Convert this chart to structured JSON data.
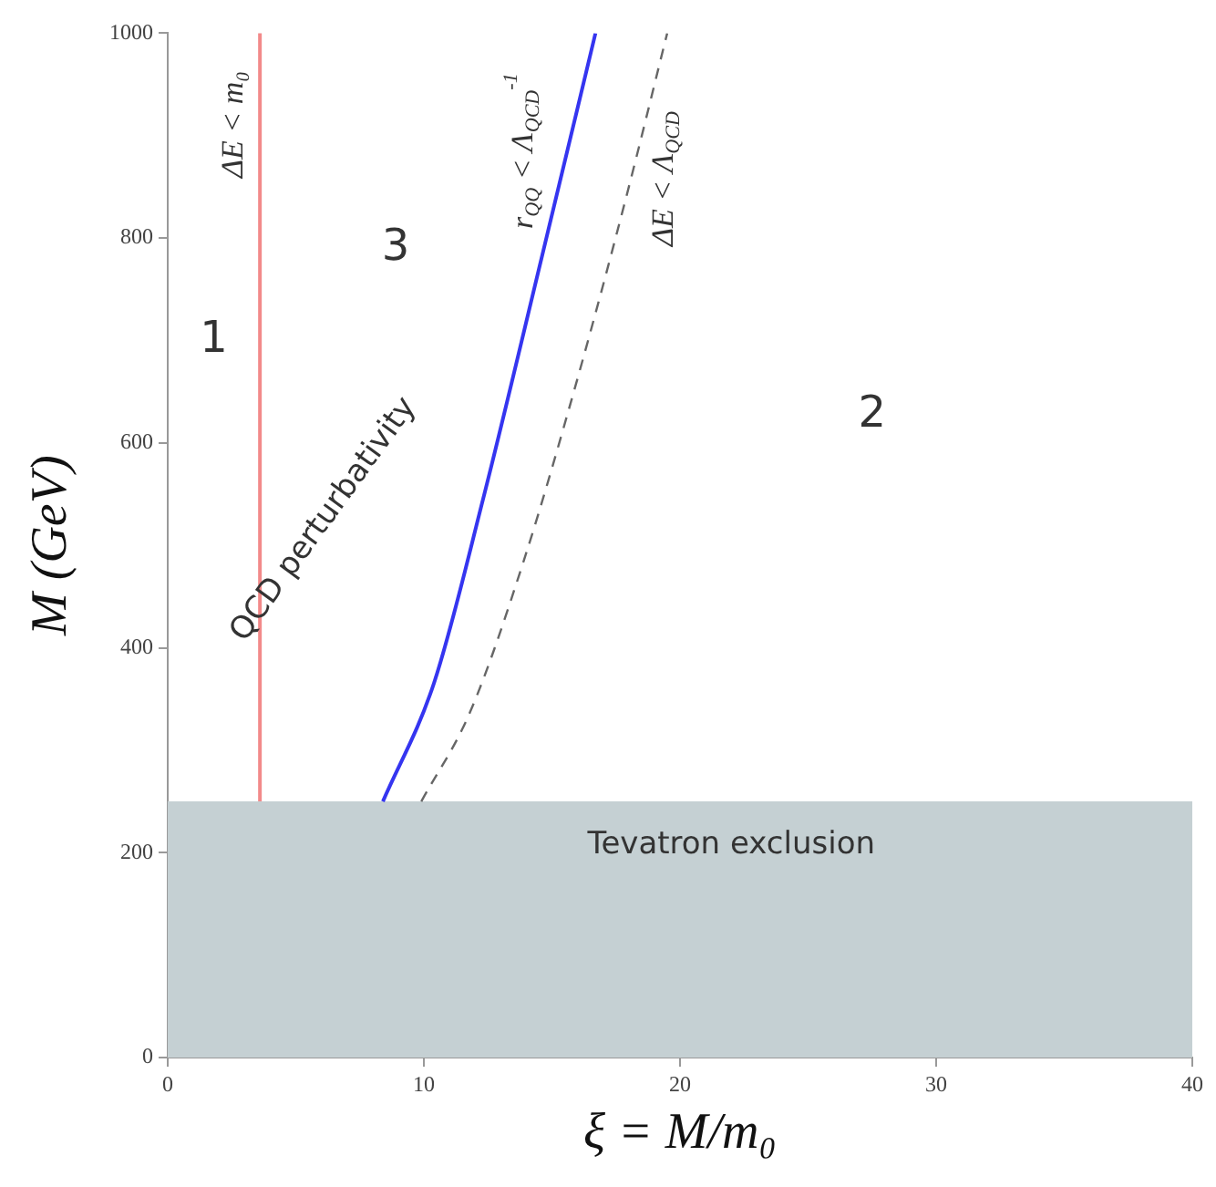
{
  "chart_data": {
    "type": "line",
    "xlabel": "ξ = M/m₀",
    "ylabel": "M (GeV)",
    "xlim": [
      0,
      40
    ],
    "xticks": [
      0,
      10,
      20,
      30,
      40
    ],
    "ylim": [
      0,
      1000
    ],
    "yticks": [
      0,
      200,
      400,
      600,
      800,
      1000
    ],
    "grid": false,
    "legend": false,
    "marker": "none",
    "series": [
      {
        "color": "#3535f0",
        "line_style": "solid",
        "x": [
          8.4,
          10.4,
          12.3,
          14.6,
          16.7
        ],
        "values": [
          250,
          366,
          544,
          781,
          1000
        ]
      },
      {
        "color": "#666666",
        "line_style": "dashed",
        "x": [
          9.9,
          11.8,
          13.9,
          16.0,
          17.9,
          19.5
        ],
        "values": [
          250,
          337,
          485,
          663,
          840,
          1000
        ]
      }
    ],
    "ref_lines": [
      {
        "axis": "x",
        "value": 3.6,
        "label": "ΔE < m₀",
        "color": "#f28a8a"
      }
    ],
    "bands": [
      {
        "axis": "y",
        "from": 0,
        "to": 250,
        "label": "Tevatron exclusion",
        "color": "#c5d0d3"
      }
    ],
    "annotations": [
      "1",
      "3",
      "2",
      "QCD perturbativity",
      "r$_{QQ}$ < Λ$_{QCD}$$^{-1}$",
      "ΔE < Λ$_{QCD}$"
    ]
  }
}
